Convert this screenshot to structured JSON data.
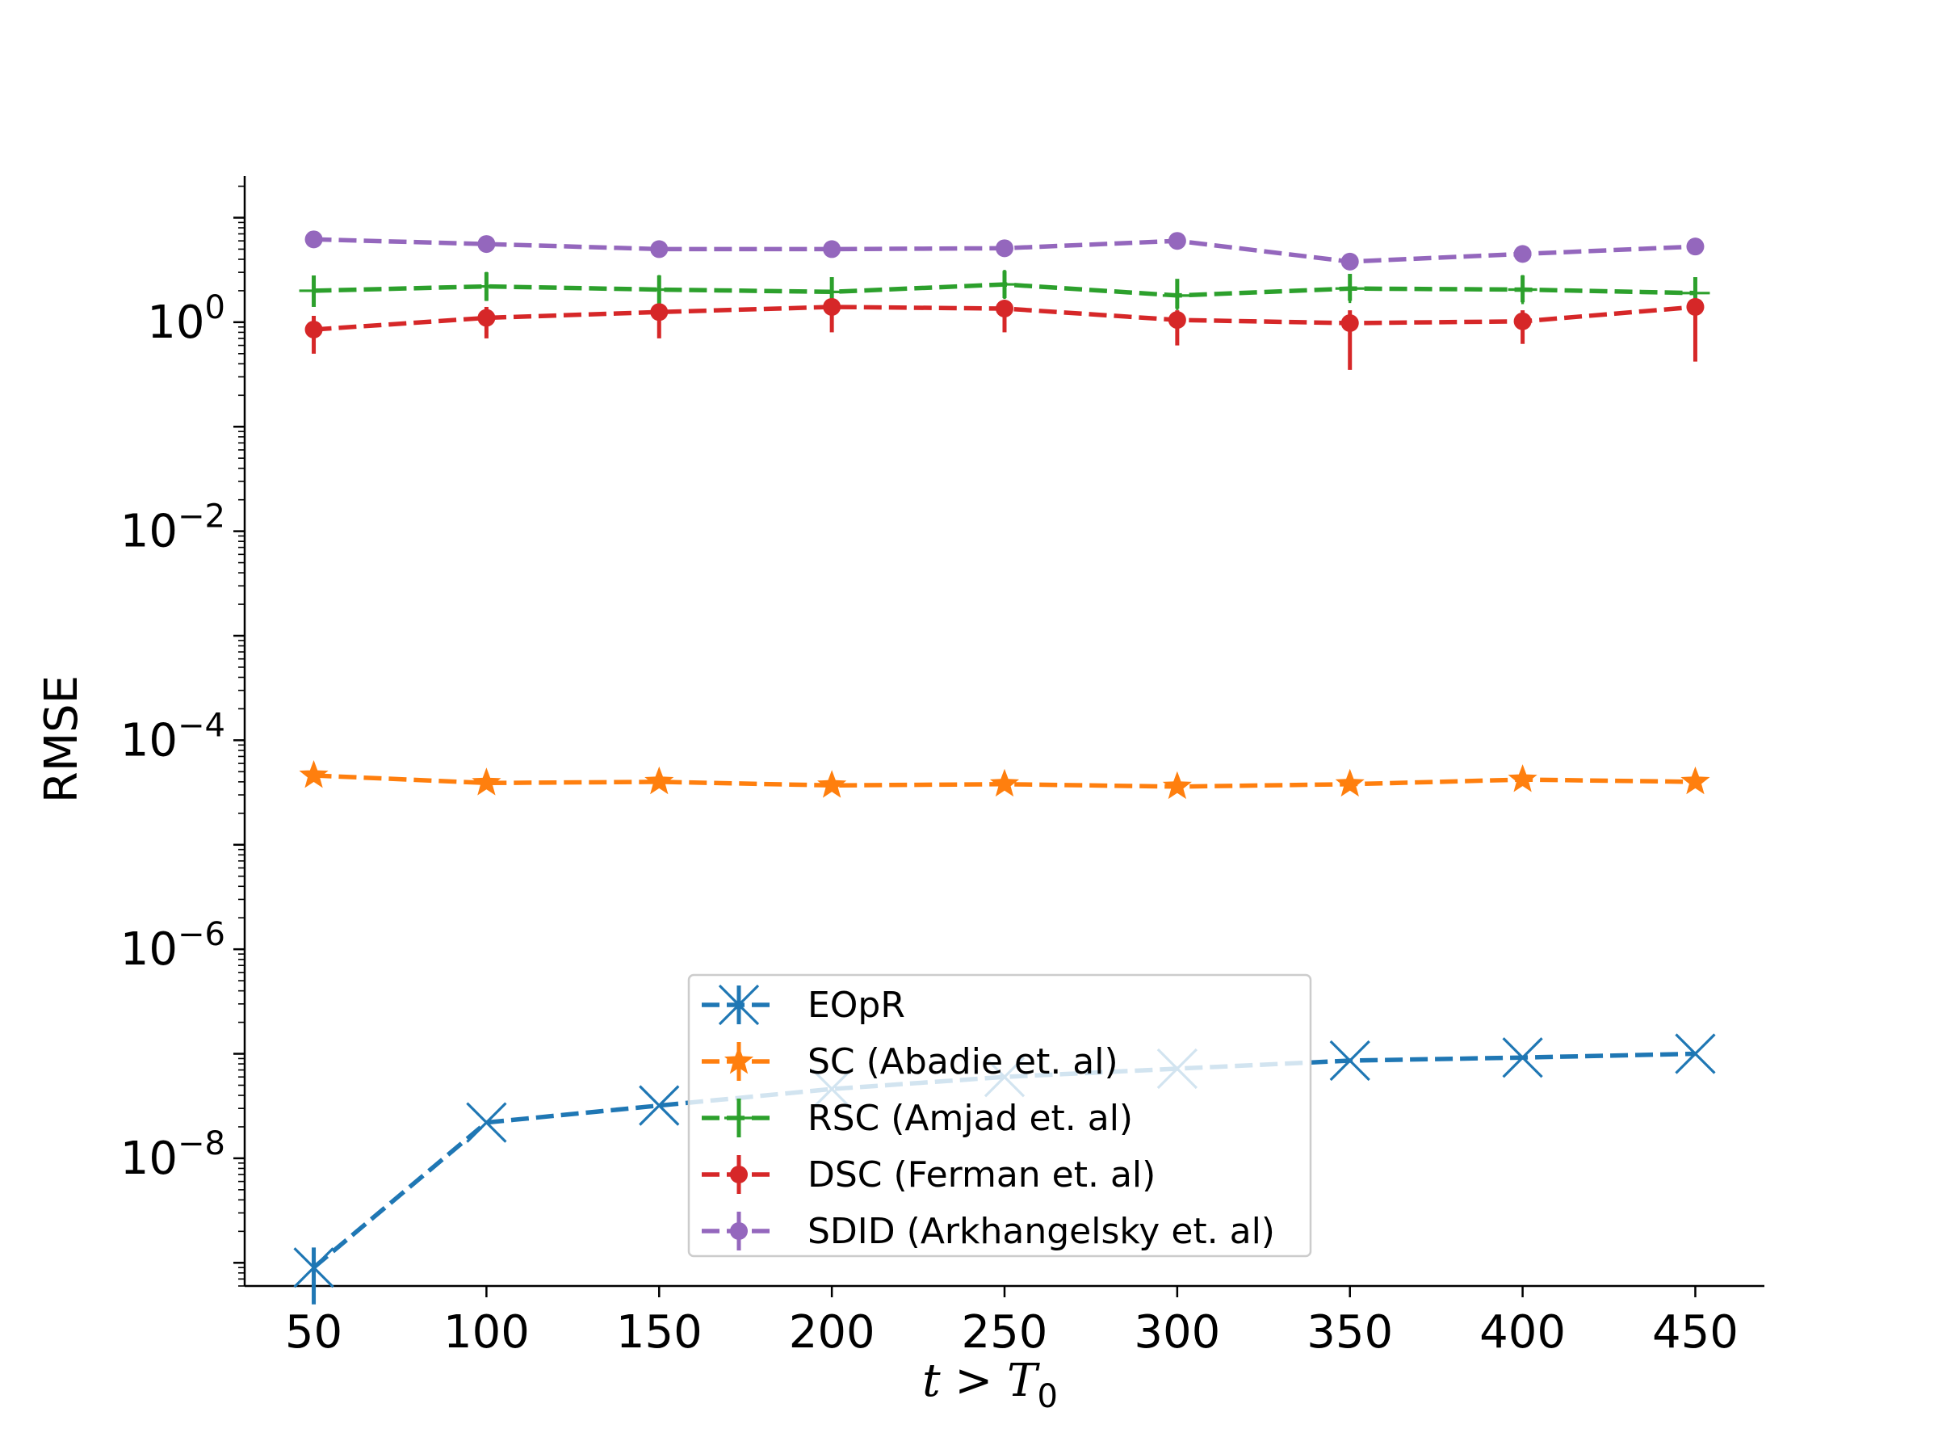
{
  "chart_data": {
    "type": "line",
    "title": "",
    "xlabel_parts": [
      "t",
      " > ",
      "T",
      "0"
    ],
    "ylabel": "RMSE",
    "y_scale": "log",
    "x": [
      50,
      100,
      150,
      200,
      250,
      300,
      350,
      400,
      450
    ],
    "x_ticks": [
      "50",
      "100",
      "150",
      "200",
      "250",
      "300",
      "350",
      "400",
      "450"
    ],
    "xlim": [
      30,
      470
    ],
    "ylim": [
      6e-10,
      25
    ],
    "y_ticks": [
      {
        "value": 1,
        "base": "10",
        "exp": "0"
      },
      {
        "value": 0.01,
        "base": "10",
        "exp": "−2"
      },
      {
        "value": 0.0001,
        "base": "10",
        "exp": "−4"
      },
      {
        "value": 1e-06,
        "base": "10",
        "exp": "−6"
      },
      {
        "value": 1e-08,
        "base": "10",
        "exp": "−8"
      }
    ],
    "grid": false,
    "legend_position": "bottom-center",
    "series": [
      {
        "name": "EOpR",
        "color": "#1f77b4",
        "marker": "x",
        "values": [
          9e-10,
          2.2e-08,
          3.2e-08,
          4.6e-08,
          6e-08,
          7.2e-08,
          8.6e-08,
          9.2e-08,
          1e-07
        ],
        "err_low": [
          4e-10,
          0,
          0,
          0,
          0,
          0,
          0,
          0,
          0
        ],
        "err_high": [
          1.4e-09,
          0,
          0,
          0,
          0,
          0,
          0,
          0,
          0
        ]
      },
      {
        "name": "SC (Abadie et. al)",
        "color": "#ff7f0e",
        "marker": "star",
        "values": [
          4.6e-05,
          3.9e-05,
          4e-05,
          3.7e-05,
          3.8e-05,
          3.6e-05,
          3.8e-05,
          4.2e-05,
          4e-05
        ],
        "err_low": [
          0,
          0,
          0,
          0,
          0,
          0,
          0,
          0,
          0
        ],
        "err_high": [
          0,
          0,
          0,
          0,
          0,
          0,
          0,
          0,
          0
        ]
      },
      {
        "name": "RSC (Amjad et. al)",
        "color": "#2ca02c",
        "marker": "plus",
        "values": [
          2.0,
          2.2,
          2.05,
          1.95,
          2.3,
          1.8,
          2.1,
          2.05,
          1.9
        ],
        "err_low": [
          1.4,
          1.6,
          1.5,
          1.45,
          1.7,
          1.35,
          1.6,
          1.55,
          1.4
        ],
        "err_high": [
          2.8,
          3.0,
          2.8,
          2.7,
          3.1,
          2.6,
          2.9,
          2.8,
          2.7
        ]
      },
      {
        "name": "DSC (Ferman et. al)",
        "color": "#d62728",
        "marker": "circle",
        "values": [
          0.85,
          1.1,
          1.25,
          1.4,
          1.35,
          1.05,
          0.98,
          1.02,
          1.4
        ],
        "err_low": [
          0.5,
          0.7,
          0.7,
          0.8,
          0.8,
          0.6,
          0.35,
          0.62,
          0.42
        ],
        "err_high": [
          1.15,
          1.4,
          1.5,
          1.65,
          1.6,
          1.3,
          1.3,
          1.3,
          1.7
        ]
      },
      {
        "name": "SDID (Arkhangelsky et. al)",
        "color": "#9467bd",
        "marker": "circle",
        "values": [
          6.2,
          5.6,
          5.0,
          5.0,
          5.1,
          6.0,
          3.8,
          4.5,
          5.3
        ],
        "err_low": [
          0,
          0,
          0,
          0,
          0,
          0,
          0,
          0,
          0
        ],
        "err_high": [
          0,
          0,
          0,
          0,
          0,
          0,
          0,
          0,
          0
        ]
      }
    ]
  }
}
